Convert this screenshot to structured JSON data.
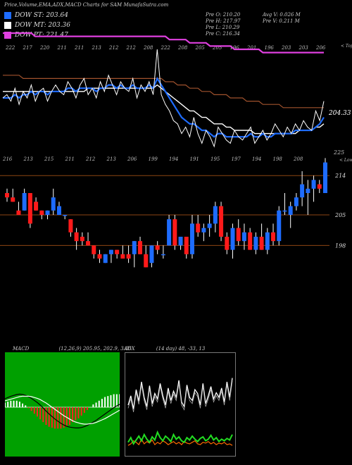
{
  "title": "Price,Volume,EMA,ADX,MACD Charts for SAM MunafaSutra.com",
  "legend": [
    {
      "label": "DOW ST: 203.64",
      "color": "#1e6cff"
    },
    {
      "label": "DOW MT: 203.36",
      "color": "#ffffff"
    },
    {
      "label": "DOW PT: 221.47",
      "color": "#e040e0"
    }
  ],
  "stats_left": [
    "Pre O: 210.20",
    "Pre H: 217.97",
    "Pre L: 210.29",
    "Pre C: 216.34"
  ],
  "stats_right": [
    "Avg V: 0.026 M",
    "Pre V: 0.211 M"
  ],
  "chart_data": [
    {
      "type": "line",
      "name": "price-ema",
      "top_labels": [
        "222",
        "217",
        "220",
        "211",
        "211",
        "213",
        "212",
        "212",
        "208",
        "222",
        "208",
        "205",
        "205",
        "196",
        "201",
        "196",
        "203",
        "203",
        "206"
      ],
      "bottom_labels": [
        "216",
        "213",
        "215",
        "211",
        "212",
        "213",
        "206",
        "199",
        "194",
        "191",
        "195",
        "197",
        "194",
        "198",
        "208"
      ],
      "right_label": "204.33",
      "right_tag_top": "< Tops",
      "right_tag_bottom": "225",
      "right_tag_lows": "< Lows",
      "series": {
        "price": [
          207,
          208,
          206,
          210,
          205,
          209,
          207,
          211,
          206,
          209,
          210,
          206,
          209,
          211,
          209,
          208,
          212,
          210,
          207,
          211,
          213,
          208,
          210,
          207,
          212,
          209,
          214,
          211,
          208,
          212,
          210,
          209,
          213,
          207,
          211,
          209,
          212,
          208,
          222,
          208,
          205,
          203,
          200,
          199,
          196,
          198,
          195,
          201,
          196,
          193,
          197,
          195,
          192,
          198,
          196,
          194,
          193,
          197,
          195,
          194,
          196,
          198,
          193,
          195,
          197,
          194,
          196,
          199,
          197,
          195,
          198,
          196,
          199,
          197,
          200,
          198,
          197,
          203,
          200,
          206
        ],
        "ema_short": [
          207,
          207,
          207,
          208,
          207,
          208,
          208,
          209,
          208,
          209,
          209,
          208,
          209,
          209,
          209,
          209,
          210,
          210,
          209,
          210,
          210,
          210,
          210,
          209,
          210,
          210,
          211,
          211,
          210,
          211,
          210,
          210,
          211,
          210,
          210,
          210,
          211,
          210,
          213,
          211,
          209,
          207,
          205,
          203,
          201,
          200,
          199,
          199,
          198,
          197,
          197,
          196,
          195,
          196,
          196,
          195,
          195,
          195,
          195,
          195,
          195,
          196,
          195,
          195,
          196,
          195,
          195,
          196,
          196,
          196,
          196,
          196,
          197,
          197,
          197,
          197,
          197,
          198,
          199,
          201
        ],
        "ema_mid": [
          209,
          209,
          209,
          209,
          209,
          209,
          209,
          209,
          209,
          209,
          209,
          209,
          209,
          209,
          209,
          209,
          209,
          209,
          209,
          209,
          209,
          210,
          210,
          210,
          210,
          210,
          210,
          210,
          210,
          210,
          210,
          210,
          210,
          210,
          210,
          210,
          210,
          210,
          211,
          210,
          209,
          208,
          207,
          206,
          205,
          204,
          203,
          203,
          202,
          201,
          201,
          200,
          199,
          199,
          199,
          198,
          198,
          197,
          197,
          197,
          197,
          197,
          196,
          196,
          196,
          196,
          196,
          196,
          196,
          196,
          196,
          196,
          196,
          197,
          197,
          197,
          197,
          198,
          198,
          199
        ],
        "ema_long": [
          214,
          214,
          214,
          214,
          214,
          213,
          213,
          213,
          213,
          213,
          213,
          213,
          213,
          213,
          213,
          213,
          213,
          213,
          213,
          213,
          213,
          213,
          213,
          213,
          213,
          213,
          213,
          213,
          213,
          213,
          213,
          213,
          213,
          213,
          213,
          213,
          213,
          213,
          213,
          213,
          212,
          212,
          212,
          211,
          211,
          211,
          210,
          210,
          210,
          209,
          209,
          209,
          208,
          208,
          208,
          208,
          207,
          207,
          207,
          207,
          206,
          206,
          206,
          206,
          205,
          205,
          205,
          205,
          205,
          204,
          204,
          204,
          204,
          204,
          204,
          204,
          204,
          204,
          204,
          204
        ],
        "ema_pt": [
          227,
          227,
          227,
          227,
          227,
          227,
          227,
          227,
          226,
          226,
          226,
          226,
          226,
          226,
          226,
          226,
          226,
          226,
          226,
          226,
          226,
          226,
          226,
          226,
          226,
          226,
          226,
          226,
          226,
          226,
          226,
          226,
          226,
          226,
          226,
          226,
          226,
          226,
          226,
          226,
          226,
          225,
          225,
          225,
          225,
          225,
          224,
          224,
          224,
          224,
          224,
          223,
          223,
          223,
          223,
          223,
          223,
          222,
          222,
          222,
          222,
          222,
          222,
          222,
          221,
          221,
          221,
          221,
          221,
          221,
          221,
          221,
          221,
          221,
          221,
          221,
          221,
          221,
          221,
          221
        ]
      }
    },
    {
      "type": "bar",
      "name": "candles",
      "hlines": [
        {
          "label": "214",
          "value": 214
        },
        {
          "label": "205",
          "value": 205
        },
        {
          "label": "198",
          "value": 198
        }
      ],
      "candles": [
        [
          210,
          211,
          208,
          209
        ],
        [
          209,
          211,
          208,
          208
        ],
        [
          206,
          208,
          205,
          205
        ],
        [
          206,
          211,
          206,
          210
        ],
        [
          210,
          210,
          202,
          203
        ],
        [
          208,
          209,
          206,
          206
        ],
        [
          206,
          206,
          204,
          205
        ],
        [
          205,
          206,
          204,
          206
        ],
        [
          206,
          211,
          205,
          209
        ],
        [
          205,
          208,
          205,
          207
        ],
        [
          205,
          205,
          204,
          205
        ],
        [
          204,
          204,
          200,
          201
        ],
        [
          201,
          202,
          197,
          199
        ],
        [
          200,
          201,
          198,
          199
        ],
        [
          199,
          201,
          198,
          198
        ],
        [
          198,
          198,
          195,
          196
        ],
        [
          196,
          197,
          194,
          195
        ],
        [
          194,
          196,
          194,
          196
        ],
        [
          196,
          197,
          194,
          197
        ],
        [
          197,
          197,
          195,
          196
        ],
        [
          196,
          198,
          195,
          195
        ],
        [
          196,
          198,
          194,
          195
        ],
        [
          196,
          199,
          193,
          199
        ],
        [
          199,
          200,
          196,
          196
        ],
        [
          196,
          198,
          193,
          193
        ],
        [
          194,
          198,
          193,
          198
        ],
        [
          198,
          199,
          196,
          197
        ],
        [
          196,
          198,
          195,
          196
        ],
        [
          198,
          205,
          198,
          204
        ],
        [
          204,
          205,
          197,
          198
        ],
        [
          198,
          200,
          197,
          200
        ],
        [
          200,
          200,
          195,
          196
        ],
        [
          196,
          205,
          195,
          203
        ],
        [
          203,
          205,
          200,
          201
        ],
        [
          201,
          203,
          199,
          202
        ],
        [
          202,
          205,
          200,
          203
        ],
        [
          203,
          208,
          201,
          207
        ],
        [
          207,
          208,
          199,
          200
        ],
        [
          200,
          201,
          196,
          197
        ],
        [
          197,
          203,
          195,
          202
        ],
        [
          202,
          204,
          198,
          199
        ],
        [
          199,
          203,
          197,
          201
        ],
        [
          201,
          202,
          197,
          197
        ],
        [
          197,
          201,
          196,
          200
        ],
        [
          200,
          203,
          197,
          197
        ],
        [
          197,
          202,
          196,
          201
        ],
        [
          201,
          203,
          198,
          199
        ],
        [
          199,
          207,
          198,
          206
        ],
        [
          206,
          210,
          205,
          206
        ],
        [
          205,
          208,
          202,
          207
        ],
        [
          207,
          210,
          206,
          209
        ],
        [
          209,
          215,
          207,
          212
        ],
        [
          210,
          213,
          205,
          211
        ],
        [
          211,
          214,
          208,
          213
        ],
        [
          212,
          213,
          210,
          211
        ],
        [
          210,
          218,
          210,
          217
        ]
      ]
    },
    {
      "type": "line",
      "name": "macd",
      "label": "MACD",
      "params": "(12,26,9) 205.95, 202.9, 3.05",
      "series": {
        "macd": [
          2,
          2.3,
          2.6,
          2.8,
          3,
          3.1,
          3,
          2.8,
          2.5,
          2.1,
          1.6,
          1.1,
          0.5,
          -0.2,
          -0.9,
          -1.6,
          -2.2,
          -2.8,
          -3.3,
          -3.8,
          -4.2,
          -4.5,
          -4.7,
          -4.8,
          -4.9,
          -4.9,
          -4.8,
          -4.6,
          -4.3,
          -3.9,
          -3.5,
          -3.1,
          -2.6,
          -2.1,
          -1.6,
          -1.1,
          -0.6,
          -0.1,
          0.3,
          0.7
        ],
        "signal": [
          1.5,
          1.7,
          1.9,
          2.1,
          2.3,
          2.5,
          2.6,
          2.6,
          2.6,
          2.5,
          2.3,
          2.1,
          1.8,
          1.4,
          1,
          0.5,
          0,
          -0.5,
          -1,
          -1.5,
          -2,
          -2.4,
          -2.8,
          -3.2,
          -3.5,
          -3.7,
          -3.9,
          -4,
          -4,
          -3.9,
          -3.8,
          -3.6,
          -3.3,
          -3,
          -2.7,
          -2.3,
          -1.9,
          -1.5,
          -1.1,
          -0.7
        ]
      }
    },
    {
      "type": "line",
      "name": "adx",
      "label": "ADX",
      "params": "(14 day) 48, -33, 13",
      "series": {
        "adx": [
          60,
          72,
          55,
          80,
          65,
          90,
          70,
          58,
          85,
          62,
          75,
          68,
          88,
          72,
          60,
          82,
          66,
          78,
          70,
          92,
          64,
          58,
          86,
          70,
          66,
          80,
          75,
          60,
          88,
          62,
          72,
          84,
          68,
          76,
          70,
          82,
          64,
          90,
          70,
          95
        ],
        "plus_di": [
          12,
          18,
          10,
          15,
          20,
          14,
          22,
          16,
          12,
          19,
          15,
          25,
          18,
          14,
          20,
          17,
          13,
          22,
          16,
          19,
          14,
          12,
          18,
          15,
          20,
          16,
          13,
          17,
          19,
          14,
          16,
          21,
          15,
          18,
          13,
          16,
          14,
          17,
          15,
          22
        ],
        "minus_di": [
          8,
          10,
          14,
          12,
          9,
          16,
          10,
          13,
          11,
          15,
          9,
          12,
          10,
          14,
          12,
          9,
          11,
          13,
          10,
          12,
          9,
          13,
          11,
          10,
          12,
          14,
          10,
          9,
          12,
          11,
          13,
          10,
          12,
          9,
          11,
          10,
          12,
          9,
          10,
          8
        ]
      }
    }
  ]
}
